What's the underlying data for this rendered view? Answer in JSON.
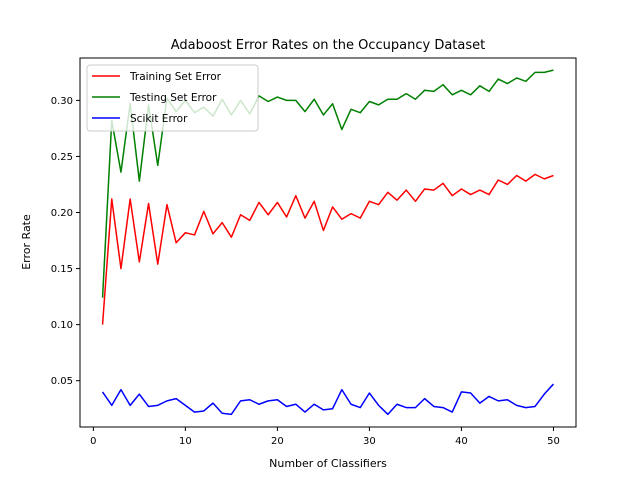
{
  "chart_data": {
    "type": "line",
    "title": "Adaboost Error Rates on the Occupancy Dataset",
    "xlabel": "Number of Classifiers",
    "ylabel": "Error Rate",
    "xlim": [
      -1.45,
      52.45
    ],
    "ylim": [
      0.0087,
      0.3378
    ],
    "xticks": [
      0,
      10,
      20,
      30,
      40,
      50
    ],
    "xtick_labels": [
      "0",
      "10",
      "20",
      "30",
      "40",
      "50"
    ],
    "yticks": [
      0.05,
      0.1,
      0.15,
      0.2,
      0.25,
      0.3
    ],
    "ytick_labels": [
      "0.05",
      "0.10",
      "0.15",
      "0.20",
      "0.25",
      "0.30"
    ],
    "grid": false,
    "legend_position": "top-left",
    "x": [
      1,
      2,
      3,
      4,
      5,
      6,
      7,
      8,
      9,
      10,
      11,
      12,
      13,
      14,
      15,
      16,
      17,
      18,
      19,
      20,
      21,
      22,
      23,
      24,
      25,
      26,
      27,
      28,
      29,
      30,
      31,
      32,
      33,
      34,
      35,
      36,
      37,
      38,
      39,
      40,
      41,
      42,
      43,
      44,
      45,
      46,
      47,
      48,
      49,
      50
    ],
    "series": [
      {
        "name": "Training Set Error",
        "color": "#ff0000",
        "values": [
          0.1,
          0.212,
          0.15,
          0.212,
          0.156,
          0.208,
          0.154,
          0.207,
          0.173,
          0.182,
          0.18,
          0.201,
          0.181,
          0.191,
          0.178,
          0.198,
          0.193,
          0.209,
          0.198,
          0.209,
          0.196,
          0.215,
          0.195,
          0.21,
          0.184,
          0.205,
          0.194,
          0.199,
          0.195,
          0.21,
          0.207,
          0.218,
          0.211,
          0.22,
          0.21,
          0.221,
          0.22,
          0.226,
          0.215,
          0.221,
          0.216,
          0.22,
          0.216,
          0.229,
          0.225,
          0.233,
          0.228,
          0.234,
          0.23,
          0.233
        ]
      },
      {
        "name": "Testing Set Error",
        "color": "#008000",
        "values": [
          0.124,
          0.282,
          0.236,
          0.297,
          0.228,
          0.296,
          0.242,
          0.302,
          0.29,
          0.3,
          0.289,
          0.294,
          0.286,
          0.301,
          0.287,
          0.3,
          0.288,
          0.304,
          0.299,
          0.303,
          0.3,
          0.3,
          0.29,
          0.301,
          0.287,
          0.297,
          0.274,
          0.292,
          0.289,
          0.299,
          0.296,
          0.301,
          0.301,
          0.306,
          0.301,
          0.309,
          0.308,
          0.314,
          0.305,
          0.309,
          0.305,
          0.313,
          0.308,
          0.319,
          0.315,
          0.32,
          0.317,
          0.325,
          0.325,
          0.327
        ]
      },
      {
        "name": "Scikit Error",
        "color": "#0000ff",
        "values": [
          0.04,
          0.028,
          0.042,
          0.028,
          0.038,
          0.027,
          0.028,
          0.032,
          0.034,
          0.028,
          0.022,
          0.023,
          0.03,
          0.021,
          0.02,
          0.032,
          0.033,
          0.029,
          0.032,
          0.033,
          0.027,
          0.029,
          0.022,
          0.029,
          0.024,
          0.025,
          0.042,
          0.029,
          0.026,
          0.039,
          0.028,
          0.02,
          0.029,
          0.026,
          0.026,
          0.034,
          0.027,
          0.026,
          0.022,
          0.04,
          0.039,
          0.03,
          0.036,
          0.032,
          0.033,
          0.028,
          0.026,
          0.027,
          0.038,
          0.047
        ]
      }
    ]
  }
}
